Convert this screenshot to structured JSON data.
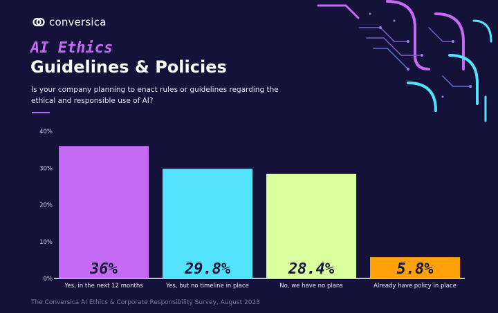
{
  "brand": {
    "name": "conversica",
    "icon": "conversica-logo-icon"
  },
  "title": {
    "accent": "AI Ethics",
    "main": "Guidelines & Policies"
  },
  "question": "Is your company planning to enact rules or guidelines regarding the ethical and responsible use of AI?",
  "footer": "The Conversica AI Ethics & Corporate Responsibility Survey, August 2023",
  "colors": {
    "background": "#15123a",
    "accent": "#c56bf3",
    "bars": [
      "#c56bf3",
      "#53e2fb",
      "#daff9e",
      "#ffa20a"
    ]
  },
  "chart_data": {
    "type": "bar",
    "categories": [
      "Yes, in the next 12 months",
      "Yes, but no timeline in place",
      "No, we have no plans",
      "Already have policy in place"
    ],
    "values": [
      36,
      29.8,
      28.4,
      5.8
    ],
    "value_labels": [
      "36%",
      "29.8%",
      "28.4%",
      "5.8%"
    ],
    "yticks": [
      "0%",
      "10%",
      "20%",
      "30%",
      "40%"
    ],
    "ylim": [
      0,
      40
    ],
    "grid": false,
    "legend": "none"
  }
}
